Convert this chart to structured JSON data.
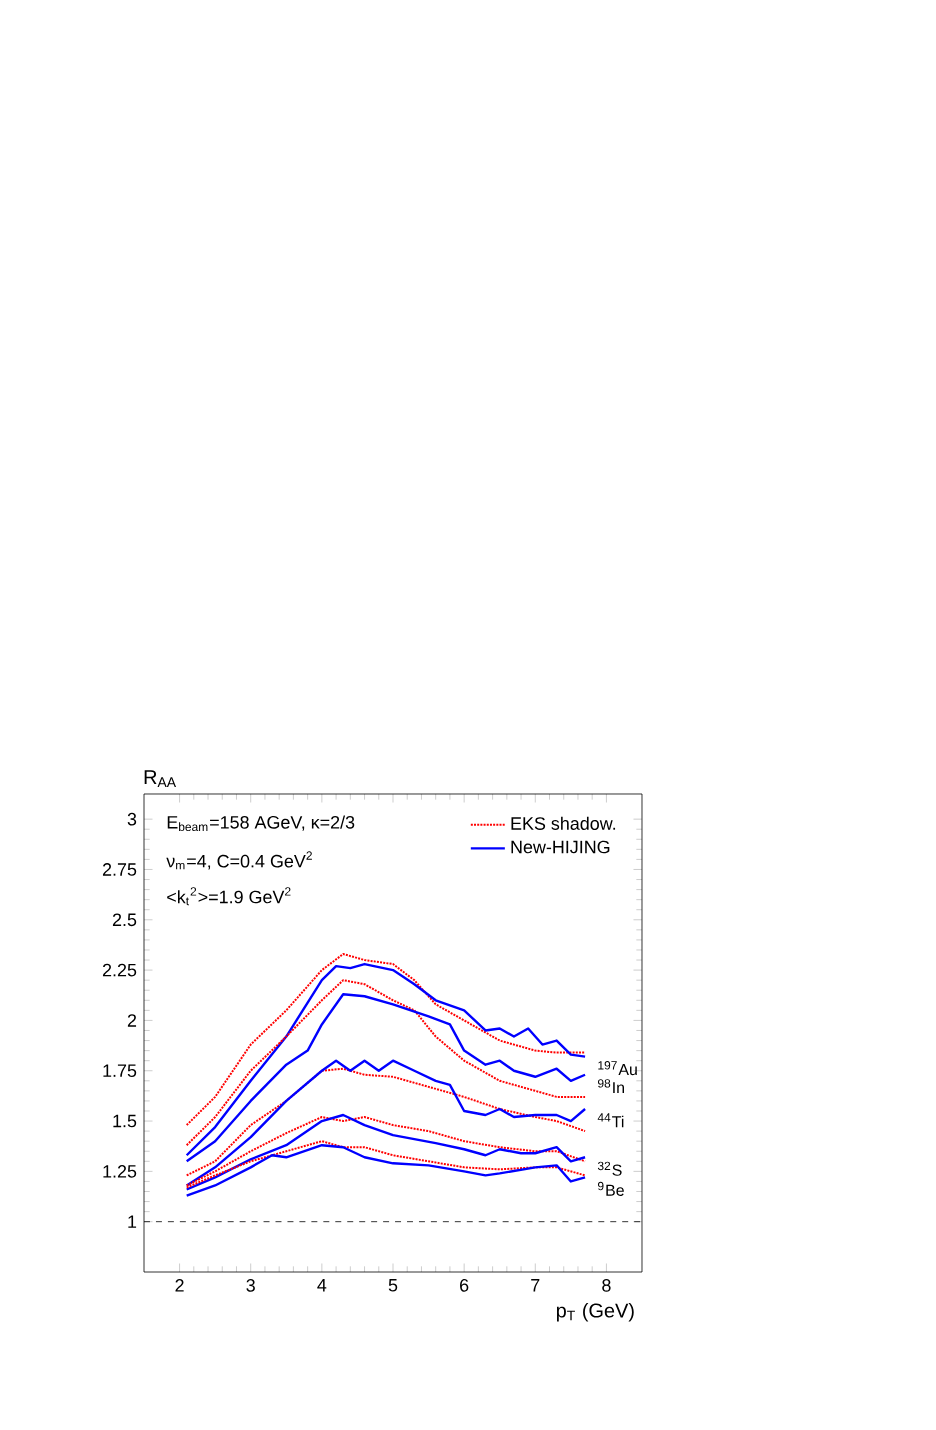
{
  "chart_data": {
    "type": "line",
    "xlabel": "p$_{T}$ (GeV)",
    "ylabel": "R$_{AA}$",
    "xlim": [
      1.5,
      8.5
    ],
    "xticks": [
      2,
      3,
      4,
      5,
      6,
      7,
      8
    ],
    "ylim": [
      0.75,
      3.125
    ],
    "yticks": [
      1,
      1.25,
      1.5,
      1.75,
      2,
      2.25,
      2.5,
      2.75,
      3
    ],
    "legend": "top right",
    "grid": false,
    "ref_lines": [
      {
        "axis": "y",
        "value": 1,
        "color": "#000000",
        "line_style": "dashed"
      }
    ],
    "annotations": [
      "E$_{beam}$=158 AGeV, κ=2/3",
      "ν$_{m}$=4,  C=0.4 GeV$^{2}$",
      "<k$_{t}$$^{2}$>=1.9 GeV$^{2}$",
      "$^{197}$Au",
      "$^{98}$In",
      "$^{44}$Ti",
      "$^{32}$S",
      "$^{9}$Be"
    ],
    "series": [
      {
        "name": "EKS shadow.",
        "color": "#ff0000",
        "line_style": "dotted",
        "x": [
          2.1,
          2.5,
          3,
          3.5,
          4,
          4.3,
          4.6,
          5,
          5.3,
          5.6,
          6,
          6.5,
          7,
          7.3,
          7.7
        ],
        "values": [
          1.48,
          1.62,
          1.88,
          2.05,
          2.25,
          2.33,
          2.3,
          2.28,
          2.2,
          2.08,
          2.0,
          1.9,
          1.85,
          1.84,
          1.84
        ]
      },
      {
        "name": "New-HIJING",
        "color": "#0000ff",
        "line_style": "solid",
        "x": [
          2.1,
          2.5,
          3,
          3.5,
          4,
          4.2,
          4.4,
          4.6,
          5,
          5.3,
          5.6,
          6,
          6.3,
          6.5,
          6.7,
          6.9,
          7.1,
          7.3,
          7.5,
          7.7
        ],
        "values": [
          1.33,
          1.47,
          1.7,
          1.92,
          2.2,
          2.27,
          2.26,
          2.28,
          2.25,
          2.18,
          2.1,
          2.05,
          1.95,
          1.96,
          1.92,
          1.96,
          1.88,
          1.9,
          1.83,
          1.82
        ]
      },
      {
        "color": "#ff0000",
        "line_style": "dotted",
        "x": [
          2.1,
          2.5,
          3,
          3.5,
          4,
          4.3,
          4.6,
          5,
          5.3,
          5.6,
          6,
          6.5,
          7,
          7.3,
          7.7
        ],
        "values": [
          1.38,
          1.52,
          1.75,
          1.92,
          2.1,
          2.2,
          2.18,
          2.1,
          2.05,
          1.92,
          1.8,
          1.7,
          1.65,
          1.62,
          1.62
        ]
      },
      {
        "color": "#0000ff",
        "line_style": "solid",
        "x": [
          2.1,
          2.5,
          3,
          3.5,
          3.8,
          4,
          4.3,
          4.6,
          5,
          5.5,
          5.8,
          6,
          6.3,
          6.5,
          6.7,
          7,
          7.3,
          7.5,
          7.7
        ],
        "values": [
          1.3,
          1.4,
          1.6,
          1.78,
          1.85,
          1.98,
          2.13,
          2.12,
          2.08,
          2.02,
          1.98,
          1.85,
          1.78,
          1.8,
          1.75,
          1.72,
          1.76,
          1.7,
          1.73
        ]
      },
      {
        "color": "#ff0000",
        "line_style": "dotted",
        "x": [
          2.1,
          2.5,
          3,
          3.5,
          4,
          4.3,
          4.6,
          5,
          5.5,
          6,
          6.5,
          7,
          7.3,
          7.7
        ],
        "values": [
          1.23,
          1.3,
          1.48,
          1.6,
          1.75,
          1.76,
          1.73,
          1.72,
          1.67,
          1.62,
          1.56,
          1.52,
          1.5,
          1.45
        ]
      },
      {
        "color": "#0000ff",
        "line_style": "solid",
        "x": [
          2.1,
          2.5,
          3,
          3.5,
          4,
          4.2,
          4.4,
          4.6,
          4.8,
          5,
          5.3,
          5.6,
          5.8,
          6,
          6.3,
          6.5,
          6.7,
          7,
          7.3,
          7.5,
          7.7
        ],
        "values": [
          1.18,
          1.27,
          1.42,
          1.6,
          1.75,
          1.8,
          1.75,
          1.8,
          1.75,
          1.8,
          1.75,
          1.7,
          1.68,
          1.55,
          1.53,
          1.56,
          1.52,
          1.53,
          1.53,
          1.5,
          1.56
        ]
      },
      {
        "color": "#ff0000",
        "line_style": "dotted",
        "x": [
          2.1,
          2.5,
          3,
          3.5,
          4,
          4.3,
          4.6,
          5,
          5.5,
          6,
          6.5,
          7,
          7.3,
          7.7
        ],
        "values": [
          1.18,
          1.25,
          1.35,
          1.44,
          1.52,
          1.5,
          1.52,
          1.48,
          1.45,
          1.4,
          1.37,
          1.35,
          1.35,
          1.3
        ]
      },
      {
        "color": "#0000ff",
        "line_style": "solid",
        "x": [
          2.1,
          2.5,
          3,
          3.5,
          4,
          4.3,
          4.6,
          5,
          5.3,
          5.6,
          6,
          6.3,
          6.5,
          6.8,
          7,
          7.3,
          7.5,
          7.7
        ],
        "values": [
          1.16,
          1.22,
          1.31,
          1.38,
          1.5,
          1.53,
          1.48,
          1.43,
          1.41,
          1.39,
          1.36,
          1.33,
          1.36,
          1.34,
          1.34,
          1.37,
          1.3,
          1.32
        ]
      },
      {
        "color": "#ff0000",
        "line_style": "dotted",
        "x": [
          2.1,
          2.5,
          3,
          3.5,
          4,
          4.3,
          4.6,
          5,
          5.5,
          6,
          6.5,
          7,
          7.3,
          7.7
        ],
        "values": [
          1.17,
          1.23,
          1.3,
          1.35,
          1.4,
          1.37,
          1.37,
          1.33,
          1.3,
          1.27,
          1.26,
          1.27,
          1.27,
          1.23
        ]
      },
      {
        "color": "#0000ff",
        "line_style": "solid",
        "x": [
          2.1,
          2.5,
          3,
          3.3,
          3.5,
          4,
          4.3,
          4.6,
          5,
          5.5,
          6,
          6.3,
          6.5,
          7,
          7.3,
          7.5,
          7.7
        ],
        "values": [
          1.13,
          1.18,
          1.27,
          1.33,
          1.32,
          1.38,
          1.37,
          1.32,
          1.29,
          1.28,
          1.25,
          1.23,
          1.24,
          1.27,
          1.28,
          1.2,
          1.22
        ]
      }
    ]
  }
}
